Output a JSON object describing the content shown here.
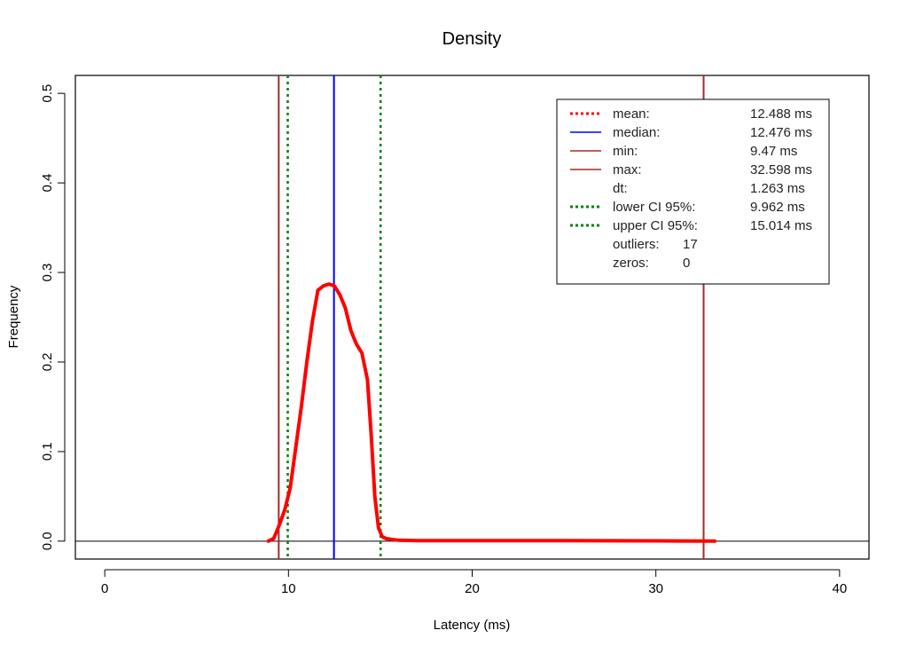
{
  "chart_data": {
    "type": "line",
    "title": "Density",
    "xlabel": "Latency (ms)",
    "ylabel": "Frequency",
    "xlim": [
      -1.6,
      41.6
    ],
    "ylim": [
      -0.02,
      0.52
    ],
    "x_ticks": [
      "0",
      "10",
      "20",
      "30",
      "40"
    ],
    "y_ticks": [
      "0.0",
      "0.1",
      "0.2",
      "0.3",
      "0.4",
      "0.5"
    ],
    "grid": false,
    "legend_position": "top-right",
    "colors": {
      "density": "#ff0000",
      "mean": "#ff0000",
      "median": "#0000ff",
      "min": "#a52a2a",
      "max": "#a52a2a",
      "ci": "#008000",
      "baseline": "#000000"
    },
    "series": [
      {
        "name": "density",
        "x": [
          8.9,
          9.2,
          9.5,
          9.8,
          10.1,
          10.4,
          10.7,
          11.0,
          11.3,
          11.6,
          11.9,
          12.2,
          12.5,
          12.8,
          13.1,
          13.4,
          13.7,
          14.0,
          14.3,
          14.5,
          14.7,
          14.9,
          15.1,
          15.3,
          15.6,
          16.0,
          17.0,
          20.0,
          25.0,
          30.0,
          33.2
        ],
        "y": [
          0.0,
          0.003,
          0.018,
          0.035,
          0.06,
          0.105,
          0.15,
          0.2,
          0.245,
          0.28,
          0.285,
          0.287,
          0.285,
          0.275,
          0.26,
          0.235,
          0.22,
          0.21,
          0.18,
          0.12,
          0.05,
          0.015,
          0.005,
          0.003,
          0.002,
          0.001,
          0.0005,
          0.0005,
          0.0005,
          0.0003,
          0.0
        ]
      }
    ],
    "vlines": {
      "mean": 12.488,
      "median": 12.476,
      "min": 9.47,
      "max": 32.598,
      "lower_ci": 9.962,
      "upper_ci": 15.014
    },
    "legend": [
      {
        "key": "mean",
        "label": "mean:",
        "value": "12.488 ms",
        "style": "dotted",
        "color": "#ff0000"
      },
      {
        "key": "median",
        "label": "median:",
        "value": "12.476 ms",
        "style": "solid",
        "color": "#0000ff"
      },
      {
        "key": "min",
        "label": "min:",
        "value": "9.47 ms",
        "style": "solid",
        "color": "#a52a2a"
      },
      {
        "key": "max",
        "label": "max:",
        "value": "32.598 ms",
        "style": "solid",
        "color": "#a52a2a"
      },
      {
        "key": "dt",
        "label": "dt:",
        "value": "1.263 ms",
        "style": "none",
        "color": ""
      },
      {
        "key": "lower_ci",
        "label": "lower CI 95%:",
        "value": "9.962 ms",
        "style": "dotted",
        "color": "#008000"
      },
      {
        "key": "upper_ci",
        "label": "upper CI 95%:",
        "value": "15.014 ms",
        "style": "dotted",
        "color": "#008000"
      },
      {
        "key": "outliers",
        "label": "outliers:",
        "value": "17",
        "style": "none",
        "color": ""
      },
      {
        "key": "zeros",
        "label": "zeros:",
        "value": "0",
        "style": "none",
        "color": ""
      }
    ]
  }
}
